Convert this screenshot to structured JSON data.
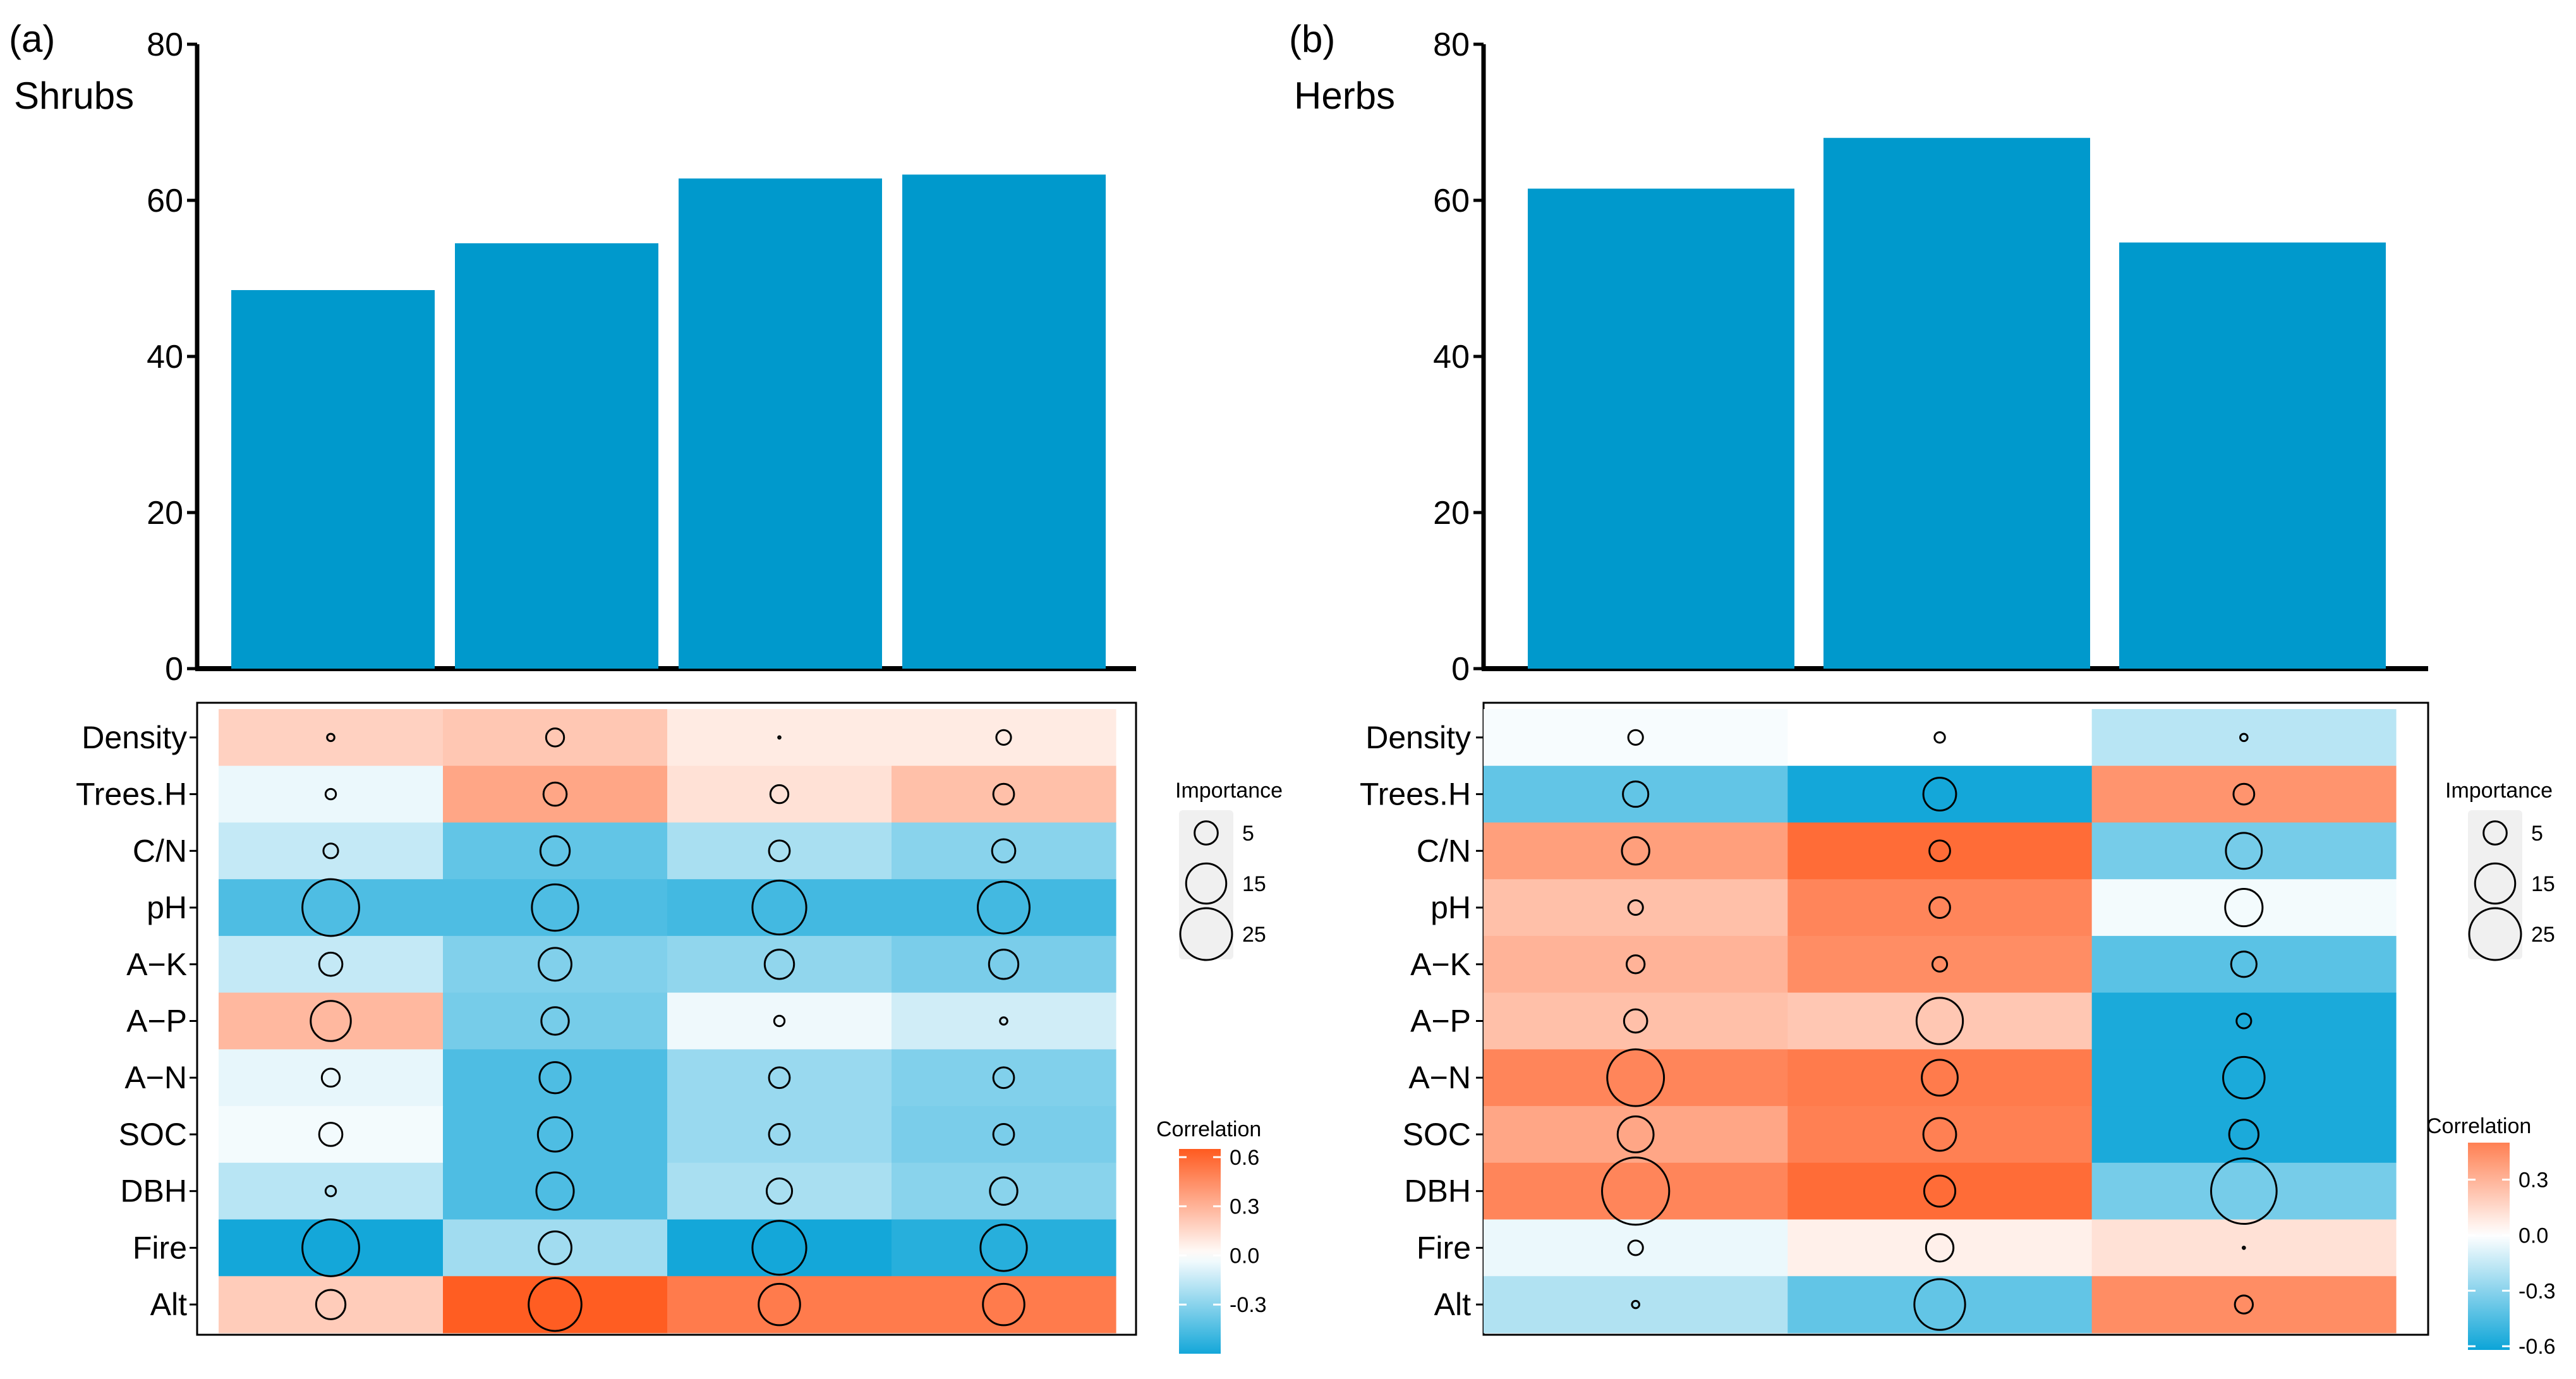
{
  "chart_data": [
    {
      "type": "bar",
      "panel_label": "(a)",
      "title": "Shrubs",
      "yticks": [
        "0",
        "20",
        "40",
        "60",
        "80"
      ],
      "ylim": [
        0,
        80
      ],
      "values": [
        48.5,
        54.5,
        62.8,
        63.3
      ],
      "bar_color": "#0099CC",
      "heatmap": {
        "type": "heatmap",
        "rows": [
          "Density",
          "Trees.H",
          "C/N",
          "pH",
          "A−K",
          "A−P",
          "A−N",
          "SOC",
          "DBH",
          "Fire",
          "Alt"
        ],
        "correlation": [
          [
            0.18,
            0.22,
            0.08,
            0.08
          ],
          [
            -0.05,
            0.35,
            0.12,
            0.25
          ],
          [
            -0.15,
            -0.4,
            -0.22,
            -0.3
          ],
          [
            -0.45,
            -0.45,
            -0.48,
            -0.48
          ],
          [
            -0.15,
            -0.32,
            -0.28,
            -0.34
          ],
          [
            0.28,
            -0.35,
            -0.04,
            -0.12
          ],
          [
            -0.06,
            -0.45,
            -0.26,
            -0.32
          ],
          [
            -0.03,
            -0.45,
            -0.26,
            -0.34
          ],
          [
            -0.18,
            -0.45,
            -0.22,
            -0.3
          ],
          [
            -0.6,
            -0.24,
            -0.6,
            -0.55
          ],
          [
            0.2,
            0.64,
            0.52,
            0.52
          ]
        ],
        "importance": [
          [
            0.5,
            3,
            0,
            2
          ],
          [
            1,
            5,
            3,
            4
          ],
          [
            2,
            8,
            4,
            5
          ],
          [
            30,
            20,
            27,
            25
          ],
          [
            5,
            10,
            8,
            8
          ],
          [
            15,
            7,
            1,
            0.5
          ],
          [
            3,
            9,
            4,
            4
          ],
          [
            5,
            11,
            4,
            4
          ],
          [
            1,
            13,
            6,
            7
          ],
          [
            30,
            10,
            27,
            20
          ],
          [
            8,
            26,
            16,
            16
          ]
        ],
        "importance_legend": {
          "title": "Importance",
          "values": [
            5,
            15,
            25
          ],
          "labels": [
            "5",
            "15",
            "25"
          ]
        },
        "correlation_legend": {
          "title": "Correlation",
          "ticks": [
            0.6,
            0.3,
            0.0,
            -0.3
          ],
          "labels": [
            "0.6",
            "0.3",
            "0.0",
            "-0.3"
          ],
          "range": [
            -0.6,
            0.65
          ]
        }
      }
    },
    {
      "type": "bar",
      "panel_label": "(b)",
      "title": "Herbs",
      "yticks": [
        "0",
        "20",
        "40",
        "60",
        "80"
      ],
      "ylim": [
        0,
        80
      ],
      "values": [
        61.5,
        68.0,
        54.6
      ],
      "bar_color": "#0099CC",
      "heatmap": {
        "type": "heatmap",
        "rows": [
          "Density",
          "Trees.H",
          "C/N",
          "pH",
          "A−K",
          "A−P",
          "A−N",
          "SOC",
          "DBH",
          "Fire",
          "Alt"
        ],
        "correlation": [
          [
            -0.02,
            0.0,
            -0.18
          ],
          [
            -0.4,
            -0.6,
            0.42
          ],
          [
            0.38,
            0.58,
            -0.35
          ],
          [
            0.25,
            0.48,
            -0.03
          ],
          [
            0.3,
            0.45,
            -0.42
          ],
          [
            0.25,
            0.22,
            -0.58
          ],
          [
            0.48,
            0.52,
            -0.58
          ],
          [
            0.35,
            0.5,
            -0.58
          ],
          [
            0.48,
            0.58,
            -0.35
          ],
          [
            -0.05,
            0.06,
            0.12
          ],
          [
            -0.2,
            -0.4,
            0.45
          ]
        ],
        "importance": [
          [
            2,
            1,
            0.5
          ],
          [
            6,
            10,
            4
          ],
          [
            7,
            4,
            12
          ],
          [
            2,
            4,
            13
          ],
          [
            3,
            2,
            6
          ],
          [
            5,
            20,
            2
          ],
          [
            30,
            12,
            16
          ],
          [
            12,
            10,
            8
          ],
          [
            42,
            9,
            40
          ],
          [
            2,
            7,
            0
          ],
          [
            0.5,
            24,
            3
          ]
        ],
        "importance_legend": {
          "title": "Importance",
          "values": [
            5,
            15,
            25
          ],
          "labels": [
            "5",
            "15",
            "25"
          ]
        },
        "correlation_legend": {
          "title": "Correlation",
          "ticks": [
            0.3,
            0.0,
            -0.3,
            -0.6
          ],
          "labels": [
            "0.3",
            "0.0",
            "-0.3",
            "-0.6"
          ],
          "range": [
            -0.62,
            0.5
          ]
        }
      }
    }
  ]
}
